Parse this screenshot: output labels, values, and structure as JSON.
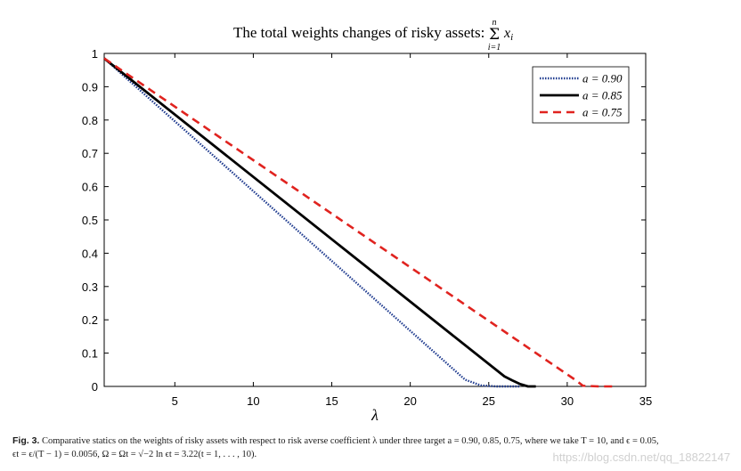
{
  "chart_data": {
    "type": "line",
    "title": "The total weights changes of risky assets:",
    "title_math": {
      "sum_upper": "n",
      "sum_symbol": "Σ",
      "sum_lower": "i=1",
      "summand": "x",
      "summand_subscript": "i"
    },
    "xlabel": "λ",
    "ylabel": "",
    "xlim": [
      0.5,
      35
    ],
    "ylim": [
      0,
      1
    ],
    "xticks": [
      5,
      10,
      15,
      20,
      25,
      30,
      35
    ],
    "yticks": [
      0,
      0.1,
      0.2,
      0.3,
      0.4,
      0.5,
      0.6,
      0.7,
      0.8,
      0.9,
      1
    ],
    "ytick_labels": [
      "0",
      "0.1",
      "0.2",
      "0.3",
      "0.4",
      "0.5",
      "0.6",
      "0.7",
      "0.8",
      "0.9",
      "1"
    ],
    "legend_position": "top-right",
    "series": [
      {
        "name": "a = 0.90",
        "color": "#1f3b8f",
        "style": "dotted",
        "x": [
          0.5,
          23.5,
          24.5,
          25.5,
          26.5,
          27.0
        ],
        "y": [
          0.985,
          0.02,
          0.003,
          0.0,
          0.0,
          0.0
        ]
      },
      {
        "name": "a = 0.85",
        "color": "#000000",
        "style": "solid",
        "x": [
          0.5,
          26.0,
          26.5,
          27.0,
          27.5,
          28.0
        ],
        "y": [
          0.985,
          0.03,
          0.018,
          0.007,
          0.0,
          0.0
        ]
      },
      {
        "name": "a = 0.75",
        "color": "#e0231f",
        "style": "dashed",
        "x": [
          0.5,
          30.5,
          31.0,
          32.0,
          33.0
        ],
        "y": [
          0.985,
          0.02,
          0.002,
          0.0,
          0.0
        ]
      }
    ]
  },
  "caption": {
    "fig_number": "Fig. 3.",
    "line1": "Comparative statics on the weights of risky assets with respect to risk averse coefficient λ under three target a = 0.90, 0.85, 0.75, where we take T = 10, and ϵ = 0.05,",
    "line2": "ϵt = ϵ/(T − 1) = 0.0056, Ω = Ωt = √−2 ln ϵt = 3.22(t = 1, . . . , 10)."
  },
  "watermark": "https://blog.csdn.net/qq_18822147"
}
